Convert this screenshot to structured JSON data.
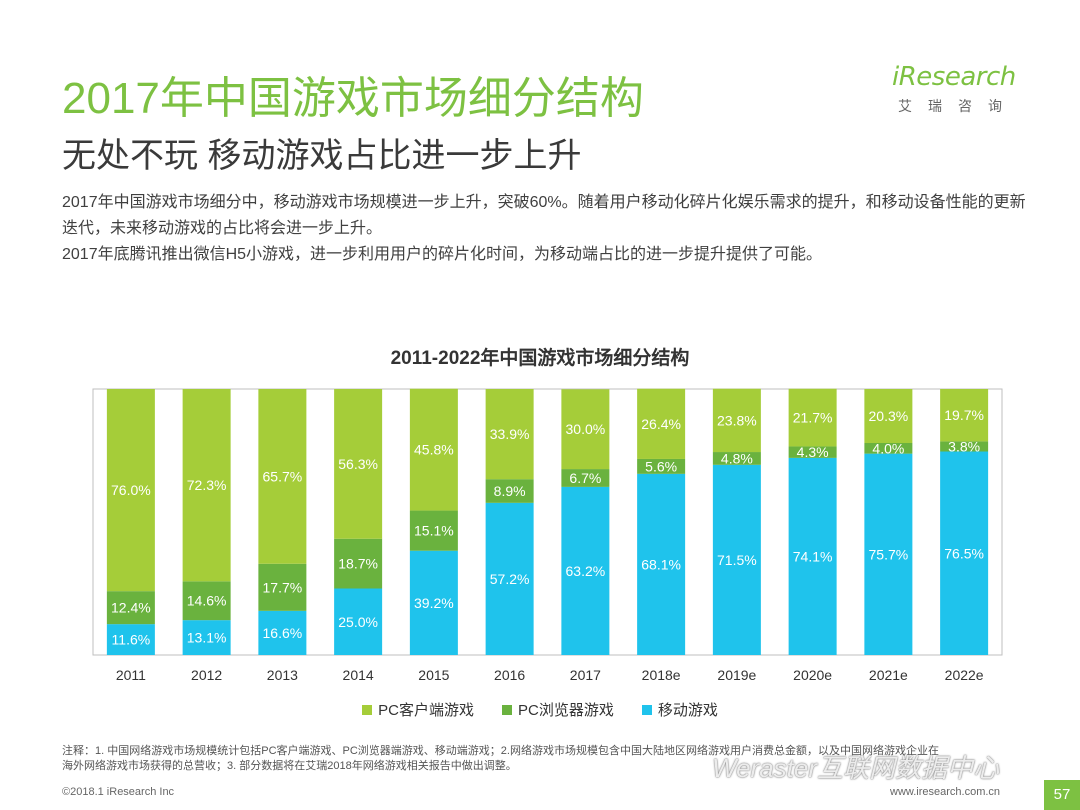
{
  "header": {
    "title": "2017年中国游戏市场细分结构",
    "subtitle": "无处不玩 移动游戏占比进一步上升"
  },
  "logo": {
    "word": "iResearch",
    "sub": "艾瑞咨询"
  },
  "body": {
    "para1": "2017年中国游戏市场细分中，移动游戏市场规模进一步上升，突破60%。随着用户移动化碎片化娱乐需求的提升，和移动设备性能的更新迭代，未来移动游戏的占比将会进一步上升。",
    "para2": "2017年底腾讯推出微信H5小游戏，进一步利用用户的碎片化时间，为移动端占比的进一步提升提供了可能。"
  },
  "chart_data": {
    "type": "bar",
    "stacked": true,
    "percent": true,
    "title": "2011-2022年中国游戏市场细分结构",
    "categories": [
      "2011",
      "2012",
      "2013",
      "2014",
      "2015",
      "2016",
      "2017",
      "2018e",
      "2019e",
      "2020e",
      "2021e",
      "2022e"
    ],
    "series": [
      {
        "name": "移动游戏",
        "color": "#1fc3ec",
        "values": [
          11.6,
          13.1,
          16.6,
          25.0,
          39.2,
          57.2,
          63.2,
          68.1,
          71.5,
          74.1,
          75.7,
          76.5
        ]
      },
      {
        "name": "PC浏览器游戏",
        "color": "#6ab23e",
        "values": [
          12.4,
          14.6,
          17.7,
          18.7,
          15.1,
          8.9,
          6.7,
          5.6,
          4.8,
          4.3,
          4.0,
          3.8
        ]
      },
      {
        "name": "PC客户端游戏",
        "color": "#a5cd39",
        "values": [
          76.0,
          72.3,
          65.7,
          56.3,
          45.8,
          33.9,
          30.0,
          26.4,
          23.8,
          21.7,
          20.3,
          19.7
        ]
      }
    ],
    "legend": [
      "PC客户端游戏",
      "PC浏览器游戏",
      "移动游戏"
    ],
    "ylim": [
      0,
      100
    ],
    "xlabel": "",
    "ylabel": ""
  },
  "notes": {
    "line1": "注释：1. 中国网络游戏市场规模统计包括PC客户端游戏、PC浏览器端游戏、移动端游戏；2.网络游戏市场规模包含中国大陆地区网络游戏用户消费总金额，以及中国网络游戏企业在",
    "line2": "海外网络游戏市场获得的总营收；3. 部分数据将在艾瑞2018年网络游戏相关报告中做出调整。"
  },
  "footer": {
    "copyright": "©2018.1 iResearch Inc",
    "url": "www.iresearch.com.cn",
    "page": "57",
    "watermark": "Weraster互联网数据中心"
  }
}
